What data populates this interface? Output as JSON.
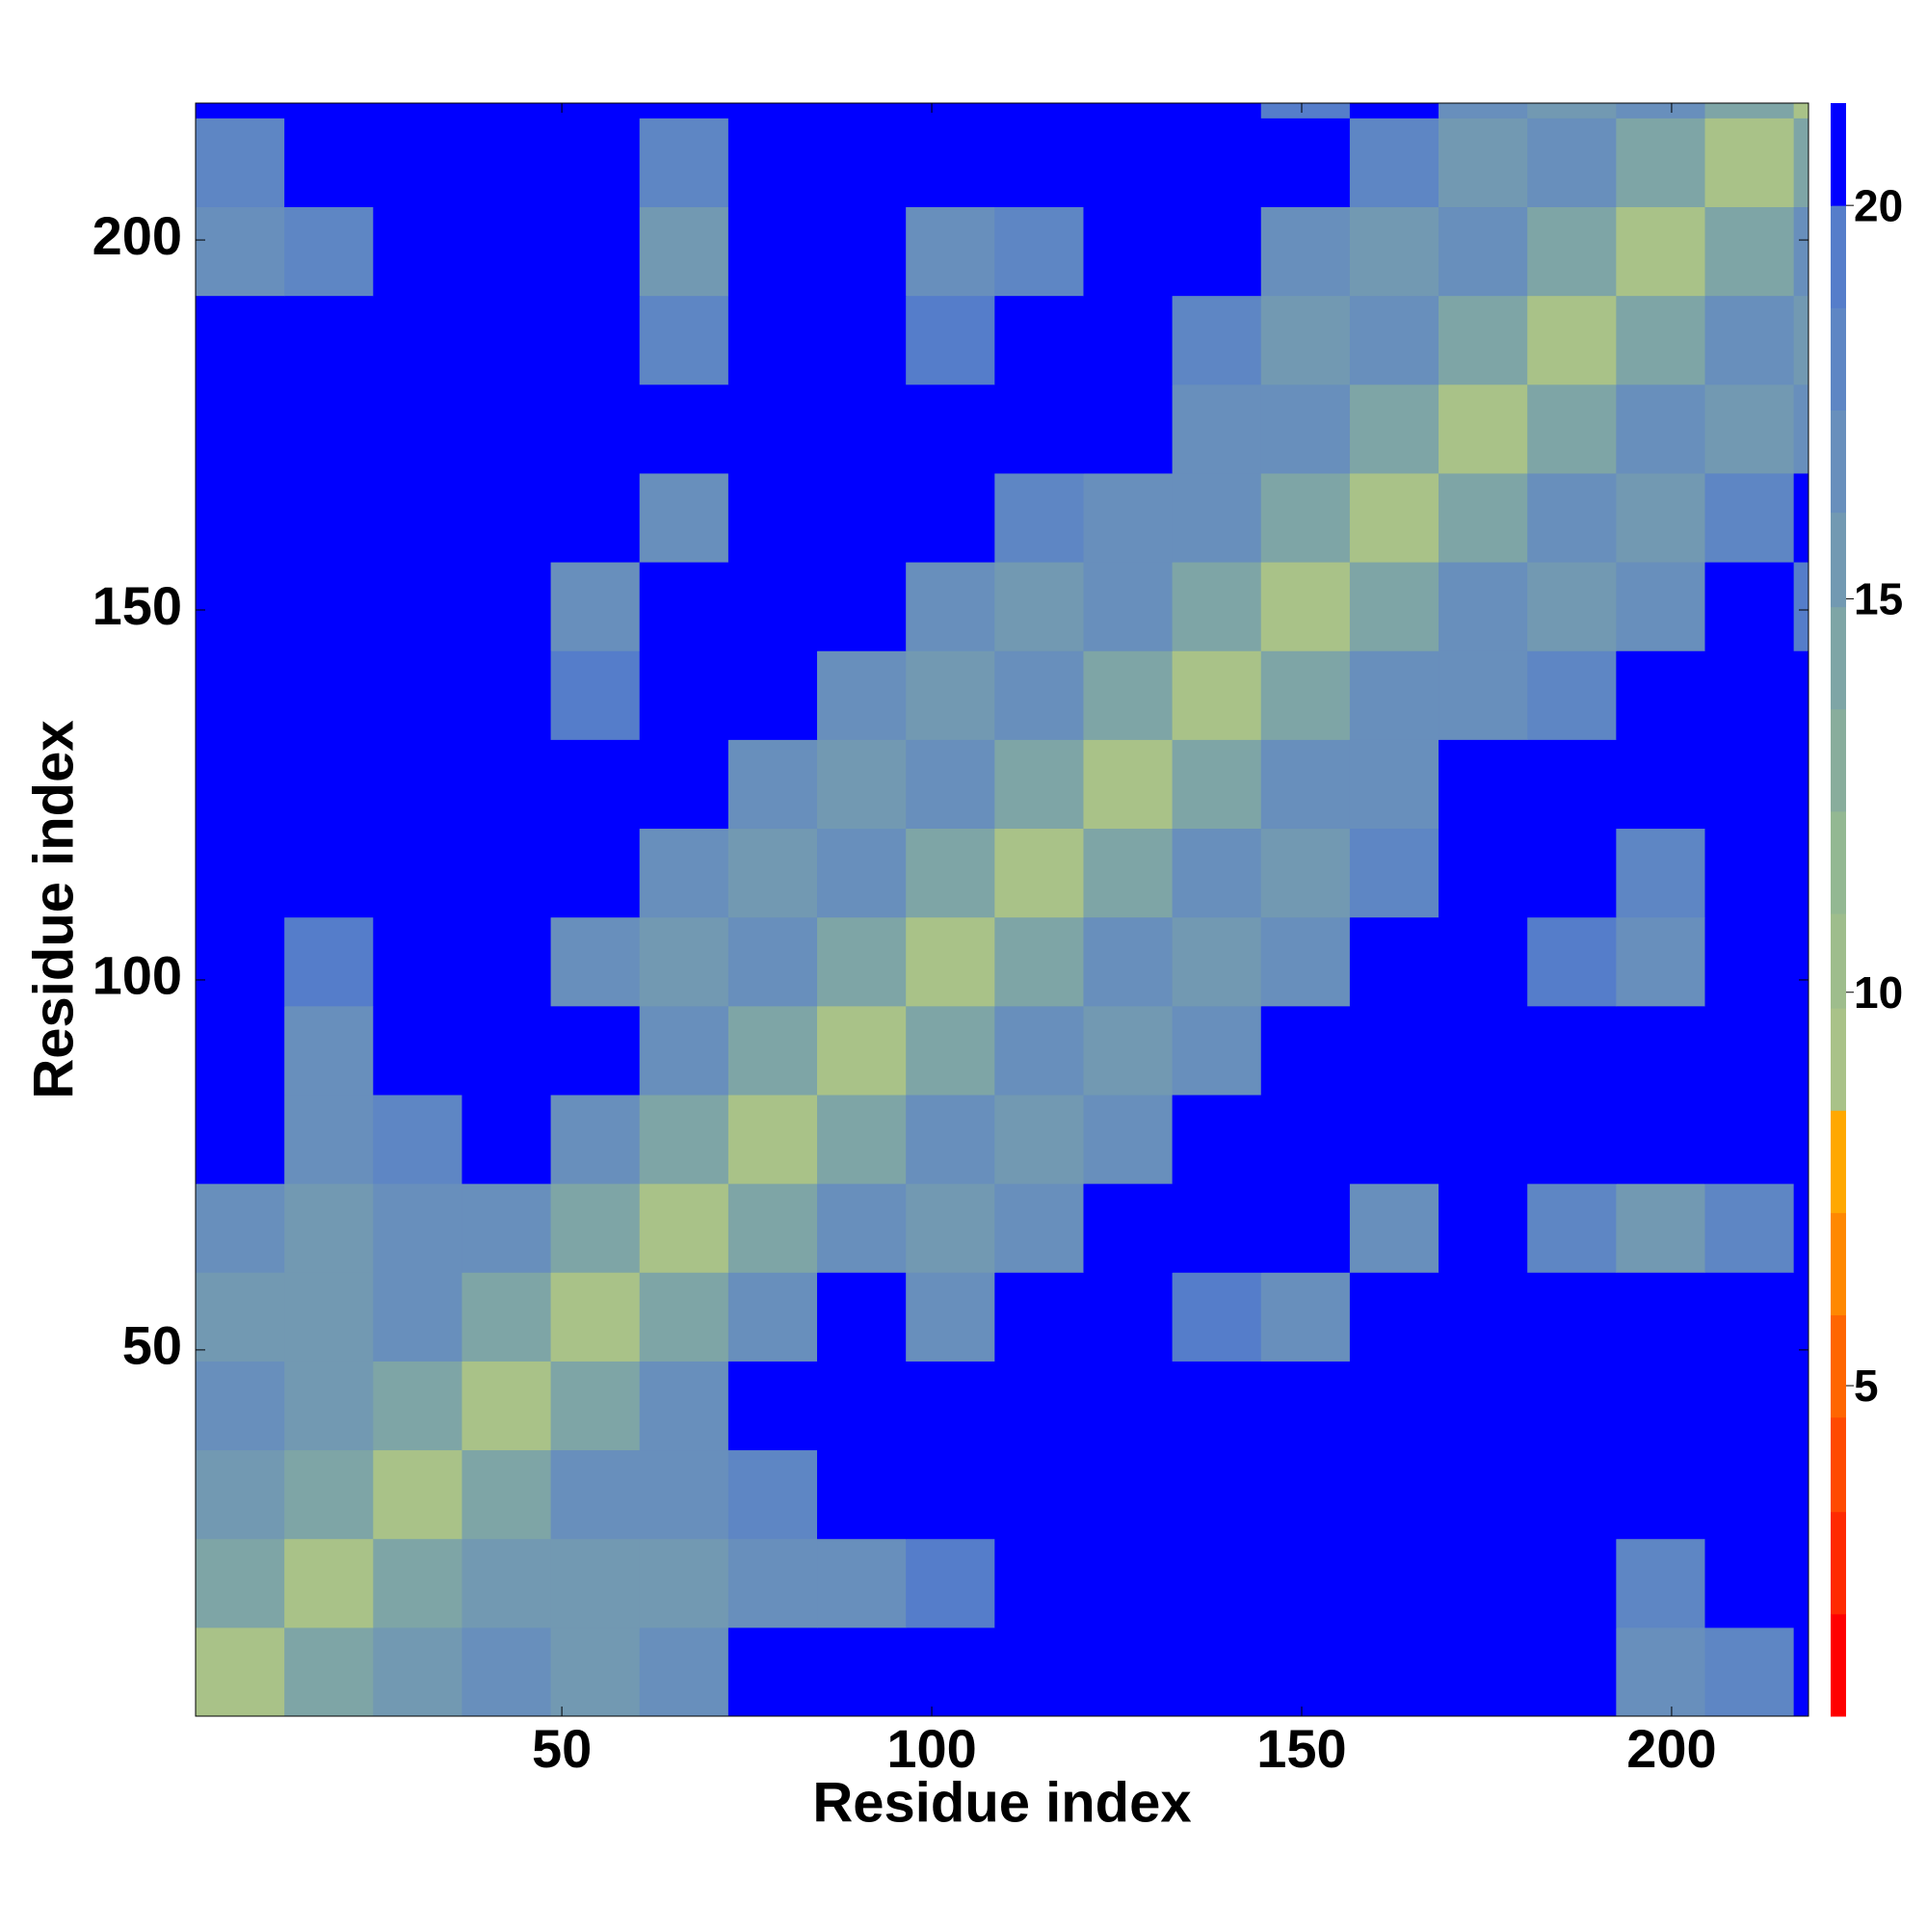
{
  "chart_data": {
    "type": "heatmap",
    "xlabel": "Residue index",
    "ylabel": "Residue index",
    "xbins": [
      0.5,
      12.5,
      24.5,
      36.5,
      48.5,
      60.5,
      72.5,
      84.5,
      96.5,
      108.5,
      120.5,
      132.5,
      144.5,
      156.5,
      168.5,
      180.5,
      192.5,
      204.5,
      216.5,
      218.5
    ],
    "ybins": [
      0.5,
      12.5,
      24.5,
      36.5,
      48.5,
      60.5,
      72.5,
      84.5,
      96.5,
      108.5,
      120.5,
      132.5,
      144.5,
      156.5,
      168.5,
      180.5,
      192.5,
      204.5,
      216.5,
      218.5
    ],
    "values": [
      [
        9,
        14,
        16,
        17,
        16,
        17,
        21,
        21,
        21,
        20,
        21,
        21,
        21,
        21,
        21,
        21,
        17,
        18,
        21
      ],
      [
        14,
        9,
        14,
        15,
        16,
        16,
        17,
        17,
        19,
        20,
        21,
        21,
        21,
        21,
        21,
        21,
        18,
        21,
        21
      ],
      [
        16,
        14,
        9,
        14,
        17,
        17,
        18,
        21,
        21,
        21,
        21,
        21,
        21,
        21,
        21,
        21,
        21,
        21,
        21
      ],
      [
        17,
        15,
        14,
        9,
        14,
        17,
        21,
        21,
        21,
        21,
        21,
        21,
        21,
        21,
        21,
        21,
        21,
        21,
        21
      ],
      [
        16,
        16,
        17,
        14,
        9,
        14,
        17,
        21,
        17,
        21,
        21,
        19,
        17,
        21,
        21,
        21,
        21,
        21,
        21
      ],
      [
        17,
        16,
        17,
        17,
        14,
        9,
        14,
        17,
        16,
        17,
        21,
        21,
        21,
        17,
        21,
        18,
        16,
        18,
        21
      ],
      [
        21,
        17,
        18,
        21,
        17,
        14,
        9,
        14,
        17,
        16,
        17,
        21,
        21,
        21,
        21,
        21,
        21,
        21,
        21
      ],
      [
        21,
        17,
        21,
        21,
        21,
        17,
        14,
        9,
        14,
        17,
        16,
        17,
        21,
        21,
        21,
        21,
        21,
        21,
        21
      ],
      [
        21,
        19,
        21,
        21,
        17,
        16,
        17,
        14,
        9,
        14,
        17,
        16,
        17,
        21,
        21,
        19,
        17,
        21,
        21
      ],
      [
        20,
        20,
        21,
        21,
        21,
        17,
        16,
        17,
        14,
        9,
        14,
        17,
        16,
        18,
        21,
        21,
        18,
        21,
        21
      ],
      [
        21,
        21,
        21,
        21,
        21,
        21,
        17,
        16,
        17,
        14,
        9,
        14,
        17,
        17,
        21,
        21,
        21,
        21,
        21
      ],
      [
        21,
        21,
        21,
        21,
        19,
        21,
        21,
        17,
        16,
        17,
        14,
        9,
        14,
        17,
        17,
        18,
        21,
        21,
        21
      ],
      [
        21,
        21,
        21,
        21,
        17,
        21,
        21,
        21,
        17,
        16,
        17,
        14,
        9,
        14,
        17,
        16,
        17,
        21,
        19
      ],
      [
        21,
        21,
        21,
        21,
        21,
        17,
        21,
        21,
        21,
        18,
        17,
        17,
        14,
        9,
        14,
        17,
        16,
        18,
        21
      ],
      [
        21,
        21,
        21,
        21,
        21,
        21,
        21,
        21,
        21,
        21,
        21,
        17,
        17,
        14,
        9,
        14,
        17,
        16,
        17
      ],
      [
        21,
        21,
        21,
        21,
        21,
        18,
        21,
        21,
        19,
        21,
        21,
        18,
        16,
        17,
        14,
        9,
        14,
        17,
        16
      ],
      [
        17,
        18,
        21,
        21,
        21,
        16,
        21,
        21,
        17,
        18,
        21,
        21,
        17,
        16,
        17,
        14,
        9,
        14,
        17
      ],
      [
        18,
        21,
        21,
        21,
        21,
        18,
        21,
        21,
        21,
        21,
        21,
        21,
        21,
        18,
        16,
        17,
        14,
        9,
        14
      ],
      [
        21,
        21,
        21,
        21,
        21,
        21,
        21,
        21,
        21,
        21,
        21,
        21,
        19,
        21,
        17,
        16,
        17,
        14,
        9
      ]
    ],
    "xlim": [
      0.5,
      218.5
    ],
    "ylim": [
      0.5,
      218.5
    ],
    "xticks": [
      50,
      100,
      150,
      200
    ],
    "yticks": [
      50,
      100,
      150,
      200
    ],
    "colorbar": {
      "lim": [
        0.8,
        21.3
      ],
      "ticks": [
        5,
        10,
        15,
        20
      ],
      "levels": [
        0.8,
        2.1,
        3.4,
        4.6,
        5.9,
        7.2,
        8.5,
        9.8,
        11,
        12.3,
        13.6,
        14.9,
        16.1,
        17.4,
        18.7,
        20,
        21.3
      ],
      "colors": [
        "#ff0000",
        "#ff2a00",
        "#ff4a00",
        "#ff6600",
        "#ff8800",
        "#ffa800",
        "#a9c288",
        "#9ebd8c",
        "#93b892",
        "#88ad9c",
        "#7ea5a6",
        "#7299b2",
        "#688fbc",
        "#5e86c4",
        "#557dca",
        "#0000ff"
      ]
    }
  }
}
